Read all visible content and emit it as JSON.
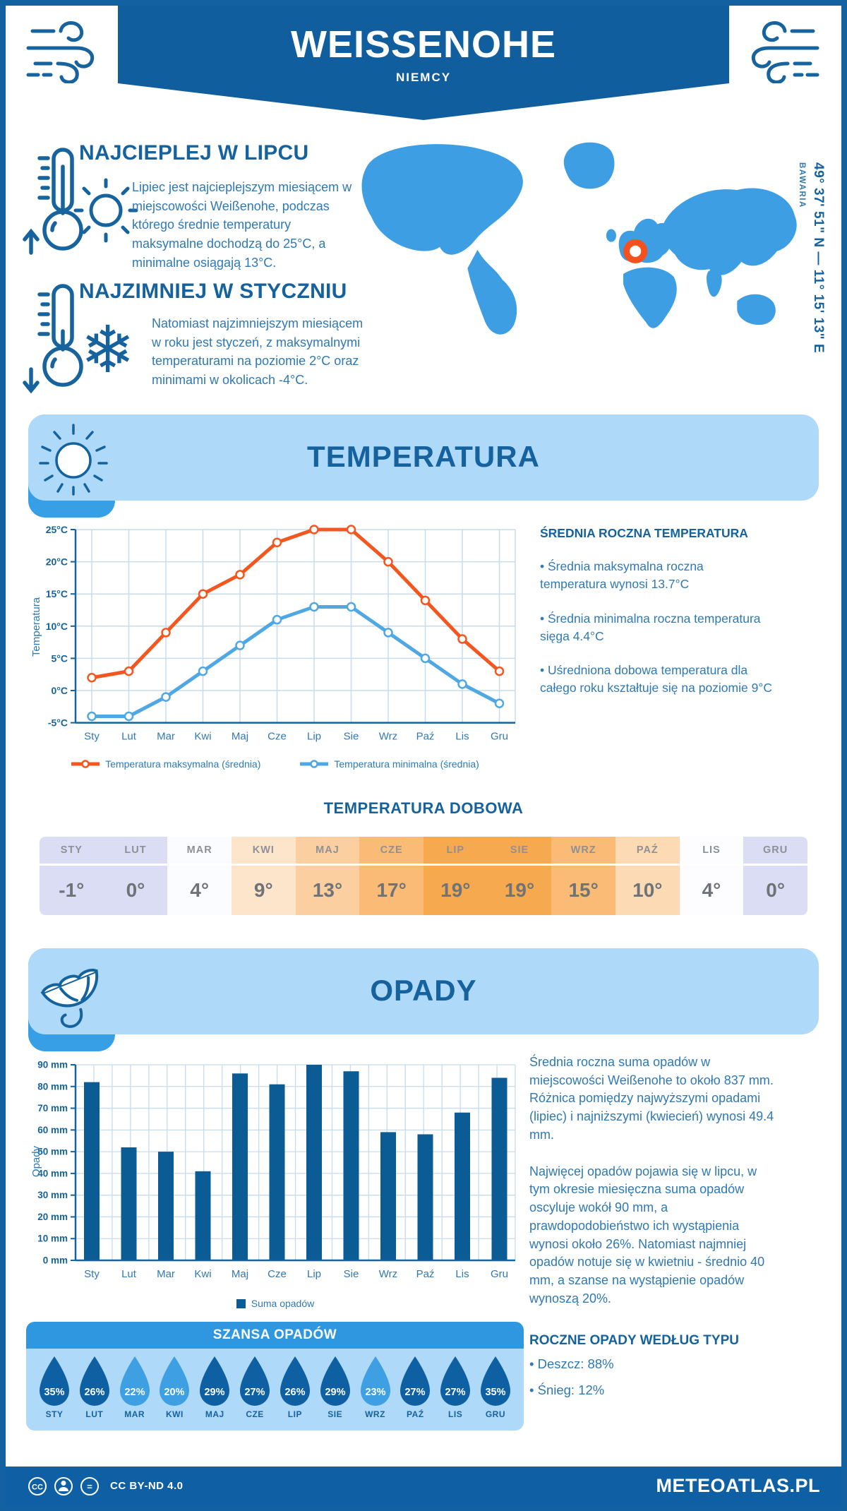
{
  "header": {
    "title": "WEISSENOHE",
    "subtitle": "NIEMCY"
  },
  "warm": {
    "heading": "NAJCIEPLEJ W LIPCU",
    "body": "Lipiec jest najcieplejszym miesiącem w miejscowości Weißenohe, podczas którego średnie temperatury maksymalne dochodzą do 25°C, a minimalne osiągają 13°C."
  },
  "cold": {
    "heading": "NAJZIMNIEJ W STYCZNIU",
    "body": "Natomiast najzimniejszym miesiącem w roku jest styczeń, z maksymalnymi temperaturami na poziomie 2°C oraz minimami w okolicach -4°C."
  },
  "icons": {
    "snowflake": "❄"
  },
  "map": {
    "coordinates": "49° 37' 51\" N — 11° 15' 13\" E",
    "region": "BAWARIA",
    "land_color": "#3D9EE3",
    "marker_color": "#F4511E"
  },
  "temperature": {
    "section_title": "TEMPERATURA",
    "annual_heading": "ŚREDNIA ROCZNA TEMPERATURA",
    "bullets": [
      "• Średnia maksymalna roczna temperatura wynosi 13.7°C",
      "• Średnia minimalna roczna temperatura sięga 4.4°C",
      "• Uśredniona dobowa temperatura dla całego roku kształtuje się na poziomie 9°C"
    ],
    "daily_title": "TEMPERATURA DOBOWA"
  },
  "precipitation": {
    "section_title": "OPADY",
    "paragraph1": "Średnia roczna suma opadów w miejscowości Weißenohe to około 837 mm. Różnica pomiędzy najwyższymi opadami (lipiec) i najniższymi (kwiecień) wynosi 49.4 mm.",
    "paragraph2": "Najwięcej opadów pojawia się w lipcu, w tym okresie miesięczna suma opadów oscyluje wokół 90 mm, a prawdopodobieństwo ich wystąpienia wynosi około 26%. Natomiast najmniej opadów notuje się w kwietniu - średnio 40 mm, a szanse na wystąpienie opadów wynoszą 20%.",
    "chance_title": "SZANSA OPADÓW",
    "types_heading": "ROCZNE OPADY WEDŁUG TYPU",
    "types": [
      "• Deszcz: 88%",
      "• Śnieg: 12%"
    ]
  },
  "footer": {
    "license": "CC BY-ND 4.0",
    "brand": "METEOATLAS.PL"
  },
  "chart_data": [
    {
      "type": "line",
      "title": "TEMPERATURA",
      "categories": [
        "Sty",
        "Lut",
        "Mar",
        "Kwi",
        "Maj",
        "Cze",
        "Lip",
        "Sie",
        "Wrz",
        "Paź",
        "Lis",
        "Gru"
      ],
      "series": [
        {
          "name": "Temperatura maksymalna (średnia)",
          "color": "#F4561F",
          "values": [
            2,
            3,
            9,
            15,
            18,
            23,
            25,
            25,
            20,
            14,
            8,
            3
          ]
        },
        {
          "name": "Temperatura minimalna (średnia)",
          "color": "#4FA8E3",
          "values": [
            -4,
            -4,
            -1,
            3,
            7,
            11,
            13,
            13,
            9,
            5,
            1,
            -2
          ]
        }
      ],
      "xlabel": "",
      "ylabel": "Temperatura",
      "ylim": [
        -5,
        25
      ],
      "ytick_step": 5,
      "ytick_suffix": "°C",
      "grid": true,
      "legend_position": "bottom"
    },
    {
      "type": "bar",
      "title": "OPADY",
      "categories": [
        "Sty",
        "Lut",
        "Mar",
        "Kwi",
        "Maj",
        "Cze",
        "Lip",
        "Sie",
        "Wrz",
        "Paź",
        "Lis",
        "Gru"
      ],
      "values": [
        82,
        52,
        50,
        41,
        86,
        81,
        90,
        87,
        59,
        58,
        68,
        84
      ],
      "xlabel": "",
      "ylabel": "Opady",
      "ylim": [
        0,
        90
      ],
      "ytick_step": 10,
      "ytick_suffix": " mm",
      "bar_color": "#0B5C94",
      "grid": true,
      "legend": "Suma opadów",
      "legend_position": "bottom"
    },
    {
      "type": "table",
      "title": "TEMPERATURA DOBOWA",
      "categories": [
        "STY",
        "LUT",
        "MAR",
        "KWI",
        "MAJ",
        "CZE",
        "LIP",
        "SIE",
        "WRZ",
        "PAŹ",
        "LIS",
        "GRU"
      ],
      "values": [
        "-1°",
        "0°",
        "4°",
        "9°",
        "13°",
        "17°",
        "19°",
        "19°",
        "15°",
        "10°",
        "4°",
        "0°"
      ],
      "cell_colors": [
        "#DBDDF4",
        "#DBDDF4",
        "#FBFCFF",
        "#FDE5CB",
        "#FBCFA0",
        "#F9BB76",
        "#F6A94F",
        "#F6A94F",
        "#F9BB76",
        "#FCDAB4",
        "#FDFDFF",
        "#DBDDF4"
      ]
    },
    {
      "type": "pictogram",
      "title": "SZANSA OPADÓW",
      "categories": [
        "STY",
        "LUT",
        "MAR",
        "KWI",
        "MAJ",
        "CZE",
        "LIP",
        "SIE",
        "WRZ",
        "PAŹ",
        "LIS",
        "GRU"
      ],
      "values": [
        "35%",
        "26%",
        "22%",
        "20%",
        "29%",
        "27%",
        "26%",
        "29%",
        "23%",
        "27%",
        "27%",
        "35%"
      ],
      "tones": [
        "dark",
        "dark",
        "light",
        "light",
        "dark",
        "dark",
        "dark",
        "dark",
        "light",
        "dark",
        "dark",
        "dark"
      ],
      "tone_colors": {
        "dark": "#0F5FA3",
        "light": "#3E9FE2"
      }
    }
  ]
}
